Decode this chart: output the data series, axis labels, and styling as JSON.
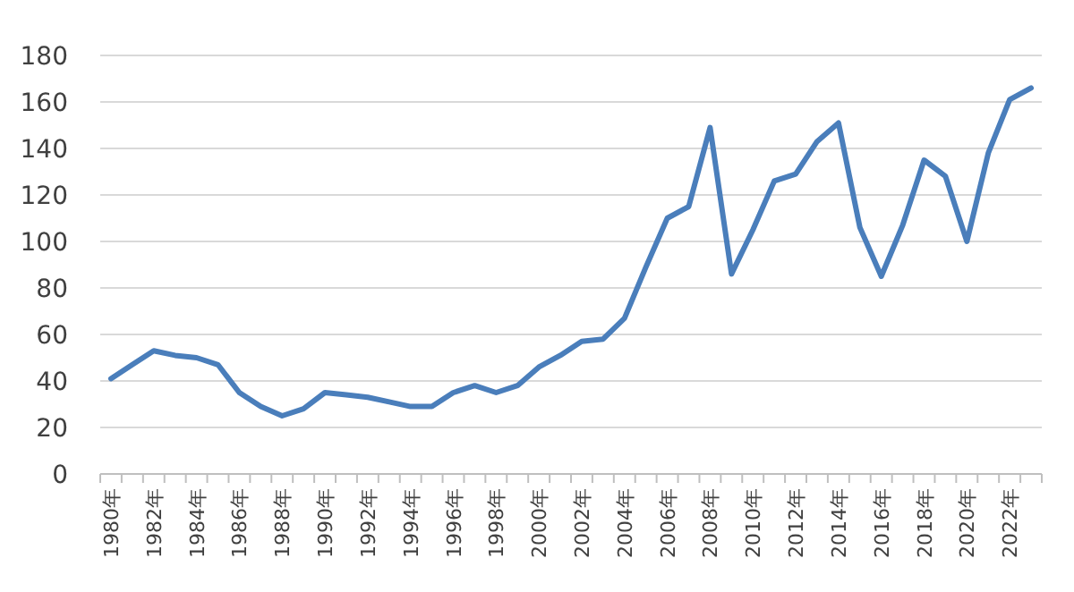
{
  "chart_data": {
    "type": "line",
    "categories": [
      "1980年",
      null,
      "1982年",
      null,
      "1984年",
      null,
      "1986年",
      null,
      "1988年",
      null,
      "1990年",
      null,
      "1992年",
      null,
      "1994年",
      null,
      "1996年",
      null,
      "1998年",
      null,
      "2000年",
      null,
      "2002年",
      null,
      "2004年",
      null,
      "2006年",
      null,
      "2008年",
      null,
      "2010年",
      null,
      "2012年",
      null,
      "2014年",
      null,
      "2016年",
      null,
      "2018年",
      null,
      "2020年",
      null,
      "2022年",
      null
    ],
    "series": [
      {
        "color": "#4a7ebb",
        "values": [
          41,
          47,
          53,
          51,
          50,
          47,
          35,
          29,
          25,
          28,
          35,
          34,
          33,
          31,
          29,
          29,
          35,
          38,
          35,
          38,
          46,
          51,
          57,
          58,
          67,
          89,
          110,
          115,
          149,
          86,
          105,
          126,
          129,
          143,
          151,
          106,
          85,
          107,
          135,
          128,
          100,
          138,
          161,
          166
        ]
      }
    ],
    "ylim": [
      0,
      180
    ],
    "yticks": [
      0,
      20,
      40,
      60,
      80,
      100,
      120,
      140,
      160,
      180
    ],
    "grid": "y",
    "marker": "none",
    "line_style": "solid"
  }
}
